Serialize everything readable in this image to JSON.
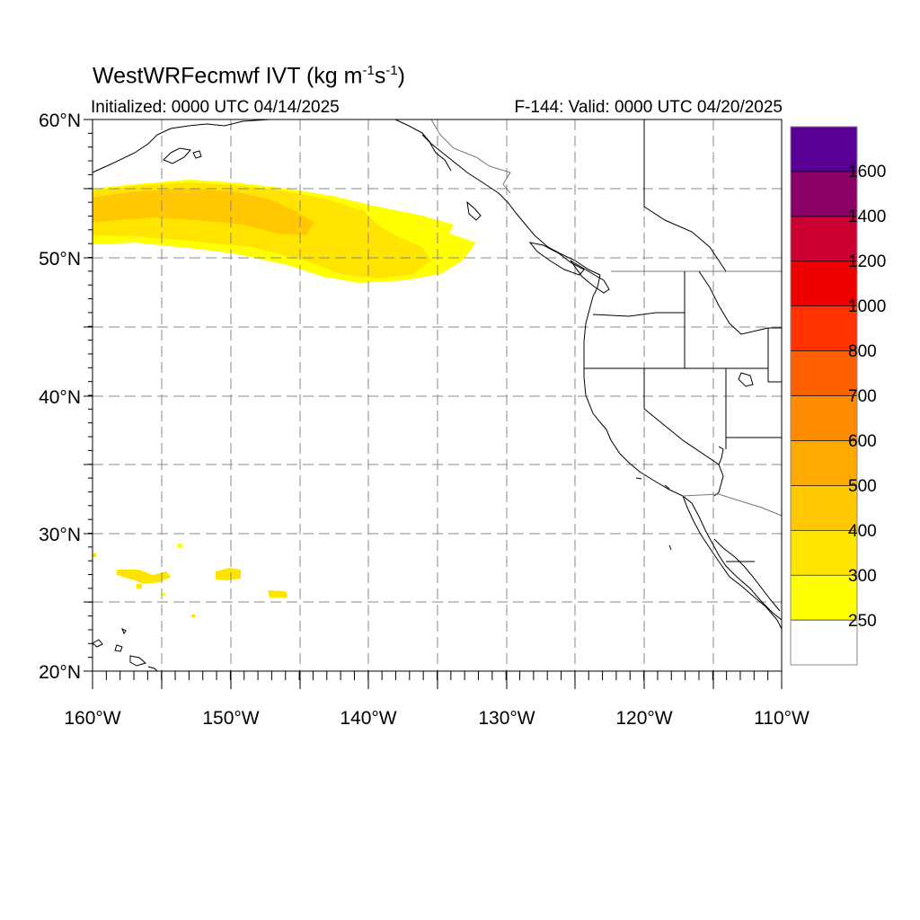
{
  "header": {
    "title_main": "WestWRFecmwf IVT (kg m",
    "title_sup1": "-1",
    "title_mid": "s",
    "title_sup2": "-1",
    "title_end": ")",
    "initialized": "Initialized: 0000 UTC 04/14/2025",
    "valid": "F-144: Valid: 0000 UTC 04/20/2025"
  },
  "map": {
    "lon_range": [
      -160,
      -110
    ],
    "lat_range": [
      20,
      60
    ],
    "lon_labels": [
      "160°W",
      "150°W",
      "140°W",
      "130°W",
      "120°W",
      "110°W"
    ],
    "lat_labels": [
      "20°N",
      "30°N",
      "40°N",
      "50°N",
      "60°N"
    ]
  },
  "colorbar": {
    "colors": [
      "#ffffff",
      "#ffff00",
      "#ffe400",
      "#ffc800",
      "#ffaa00",
      "#ff8c00",
      "#ff6000",
      "#ff3200",
      "#ee0000",
      "#cc0033",
      "#8b0066",
      "#5a0096"
    ],
    "labels": [
      "250",
      "300",
      "400",
      "500",
      "600",
      "700",
      "800",
      "1000",
      "1200",
      "1400",
      "1600"
    ]
  }
}
